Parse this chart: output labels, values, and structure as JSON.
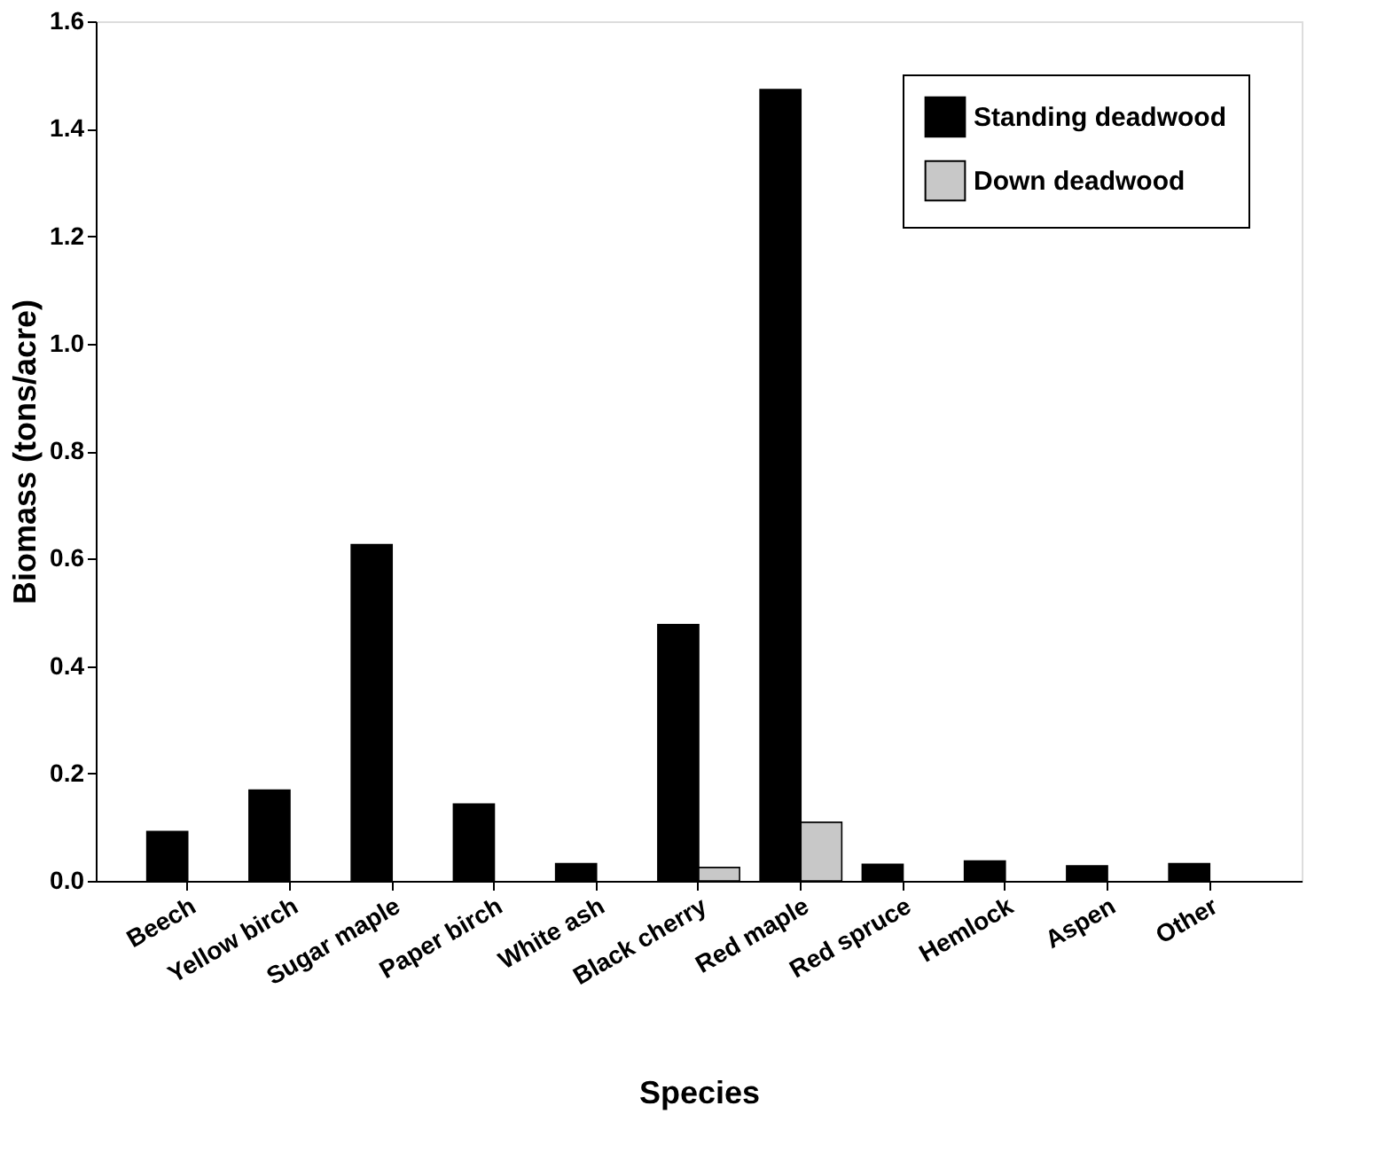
{
  "chart_data": {
    "type": "bar",
    "xlabel": "Species",
    "ylabel": "Biomass (tons/acre)",
    "categories": [
      "Beech",
      "Yellow birch",
      "Sugar maple",
      "Paper birch",
      "White ash",
      "Black cherry",
      "Red maple",
      "Red spruce",
      "Hemlock",
      "Aspen",
      "Other"
    ],
    "series": [
      {
        "name": "Standing deadwood",
        "color": "#000000",
        "values": [
          0.092,
          0.169,
          0.626,
          0.143,
          0.032,
          0.477,
          1.473,
          0.031,
          0.037,
          0.028,
          0.032
        ]
      },
      {
        "name": "Down deadwood",
        "color": "#c8c8c8",
        "values": [
          null,
          null,
          null,
          null,
          null,
          0.025,
          0.109,
          null,
          null,
          null,
          null
        ]
      }
    ],
    "ylim": [
      0,
      1.6
    ],
    "yticks": [
      {
        "value": 0,
        "label": "0.0"
      },
      0.2,
      0.4,
      0.6,
      0.8,
      {
        "value": 1,
        "label": "1.0"
      },
      1.2,
      1.4,
      1.6
    ],
    "grid": false,
    "legend": "top right"
  }
}
